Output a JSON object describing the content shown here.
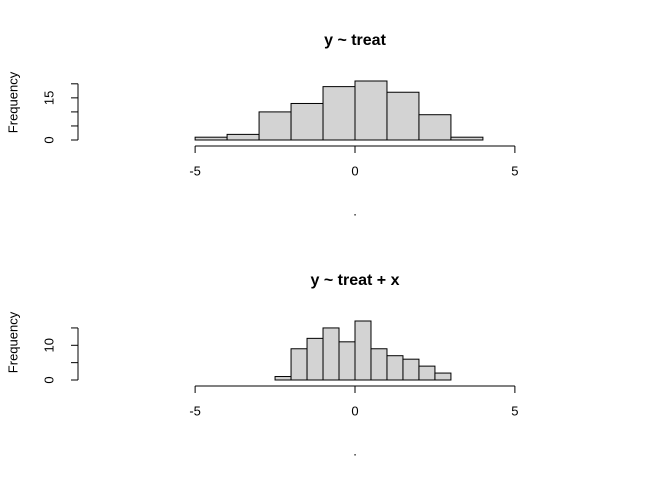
{
  "chart_data": [
    {
      "type": "histogram",
      "title": "y ~ treat",
      "x_label": ".",
      "y_label": "Frequency",
      "bins": [
        -5,
        -4,
        -3,
        -2,
        -1,
        0,
        1,
        2,
        3,
        4
      ],
      "values": [
        1,
        2,
        10,
        13,
        19,
        21,
        17,
        9,
        1
      ],
      "color": "#d3d3d3",
      "xlim": [
        -8.6,
        8.6
      ],
      "xticks": [
        -5,
        0,
        5
      ],
      "ylim": [
        0,
        21
      ],
      "yticks": [
        0,
        {
          "value": 5,
          "label": null
        },
        {
          "value": 10,
          "label": null
        },
        15,
        {
          "value": 20,
          "label": null
        }
      ]
    },
    {
      "type": "histogram",
      "title": "y ~ treat + x",
      "x_label": ".",
      "y_label": "Frequency",
      "bins": [
        -2.5,
        -2,
        -1.5,
        -1,
        -0.5,
        0,
        0.5,
        1,
        1.5,
        2,
        2.5,
        3
      ],
      "values": [
        1,
        9,
        12,
        15,
        11,
        17,
        9,
        7,
        6,
        4,
        2
      ],
      "color": "#d3d3d3",
      "xlim": [
        -8.6,
        8.6
      ],
      "xticks": [
        -5,
        0,
        5
      ],
      "ylim": [
        0,
        17
      ],
      "yticks": [
        0,
        {
          "value": 5,
          "label": null
        },
        10,
        {
          "value": 15,
          "label": null
        }
      ]
    }
  ]
}
